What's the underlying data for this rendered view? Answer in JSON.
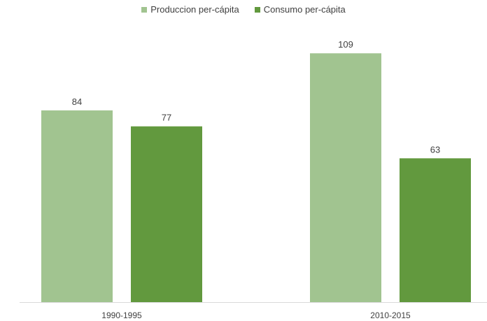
{
  "chart_data": {
    "type": "bar",
    "categories": [
      "1990-1995",
      "2010-2015"
    ],
    "series": [
      {
        "name": "Produccion per-cápita",
        "values": [
          84,
          109
        ],
        "color": "#a1c490"
      },
      {
        "name": "Consumo per-cápita",
        "values": [
          77,
          63
        ],
        "color": "#62993e"
      }
    ],
    "title": "",
    "xlabel": "",
    "ylabel": "",
    "ylim": [
      0,
      120
    ],
    "grid": false,
    "legend_position": "top-center",
    "data_labels": true
  }
}
